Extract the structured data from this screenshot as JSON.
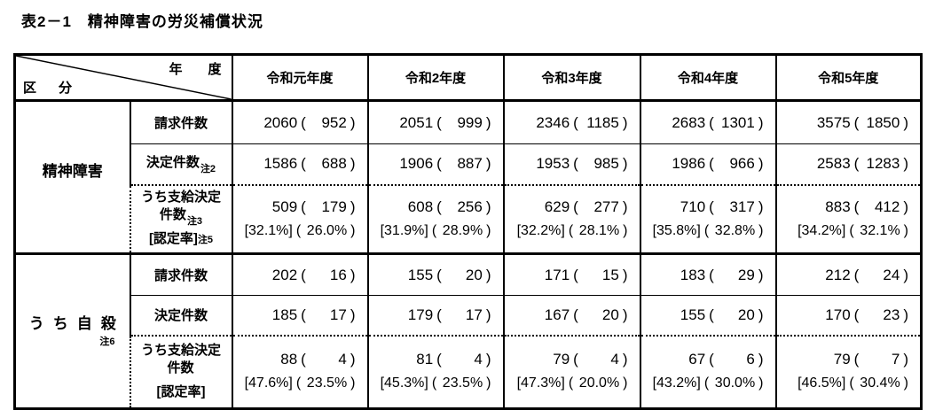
{
  "title": "表2－1　精神障害の労災補償状況",
  "punct": {
    "open": "(",
    "close": ")"
  },
  "header": {
    "axis_label_top": "年　度",
    "axis_label_bottom": "区　分",
    "years": [
      "令和元年度",
      "令和2年度",
      "令和3年度",
      "令和4年度",
      "令和5年度"
    ]
  },
  "groups": [
    {
      "label": "精神障害",
      "note": "",
      "rows": {
        "claims": {
          "label": "請求件数",
          "note": "",
          "cells": [
            {
              "main": "2060",
              "paren": "952"
            },
            {
              "main": "2051",
              "paren": "999"
            },
            {
              "main": "2346",
              "paren": "1185"
            },
            {
              "main": "2683",
              "paren": "1301"
            },
            {
              "main": "3575",
              "paren": "1850"
            }
          ]
        },
        "decisions": {
          "label": "決定件数",
          "note": "注2",
          "cells": [
            {
              "main": "1586",
              "paren": "688"
            },
            {
              "main": "1906",
              "paren": "887"
            },
            {
              "main": "1953",
              "paren": "985"
            },
            {
              "main": "1986",
              "paren": "966"
            },
            {
              "main": "2583",
              "paren": "1283"
            }
          ]
        },
        "granted": {
          "label_line1": "うち支給決定",
          "label_line2": "件数",
          "label_line2_note": "注3",
          "rate_label": "[認定率]",
          "rate_label_note": "注5",
          "cells": [
            {
              "main": "509",
              "paren": "179"
            },
            {
              "main": "608",
              "paren": "256"
            },
            {
              "main": "629",
              "paren": "277"
            },
            {
              "main": "710",
              "paren": "317"
            },
            {
              "main": "883",
              "paren": "412"
            }
          ],
          "rates": [
            {
              "main": "[32.1%]",
              "paren": "26.0%"
            },
            {
              "main": "[31.9%]",
              "paren": "28.9%"
            },
            {
              "main": "[32.2%]",
              "paren": "28.1%"
            },
            {
              "main": "[35.8%]",
              "paren": "32.8%"
            },
            {
              "main": "[34.2%]",
              "paren": "32.1%"
            }
          ]
        }
      }
    },
    {
      "label": "うち自殺",
      "note": "注6",
      "rows": {
        "claims": {
          "label": "請求件数",
          "note": "",
          "cells": [
            {
              "main": "202",
              "paren": "16"
            },
            {
              "main": "155",
              "paren": "20"
            },
            {
              "main": "171",
              "paren": "15"
            },
            {
              "main": "183",
              "paren": "29"
            },
            {
              "main": "212",
              "paren": "24"
            }
          ]
        },
        "decisions": {
          "label": "決定件数",
          "note": "",
          "cells": [
            {
              "main": "185",
              "paren": "17"
            },
            {
              "main": "179",
              "paren": "17"
            },
            {
              "main": "167",
              "paren": "20"
            },
            {
              "main": "155",
              "paren": "20"
            },
            {
              "main": "170",
              "paren": "23"
            }
          ]
        },
        "granted": {
          "label_line1": "うち支給決定",
          "label_line2": "件数",
          "label_line2_note": "",
          "rate_label": "[認定率]",
          "rate_label_note": "",
          "cells": [
            {
              "main": "88",
              "paren": "4"
            },
            {
              "main": "81",
              "paren": "4"
            },
            {
              "main": "79",
              "paren": "4"
            },
            {
              "main": "67",
              "paren": "6"
            },
            {
              "main": "79",
              "paren": "7"
            }
          ],
          "rates": [
            {
              "main": "[47.6%]",
              "paren": "23.5%"
            },
            {
              "main": "[45.3%]",
              "paren": "23.5%"
            },
            {
              "main": "[47.3%]",
              "paren": "20.0%"
            },
            {
              "main": "[43.2%]",
              "paren": "30.0%"
            },
            {
              "main": "[46.5%]",
              "paren": "30.4%"
            }
          ]
        }
      }
    }
  ]
}
